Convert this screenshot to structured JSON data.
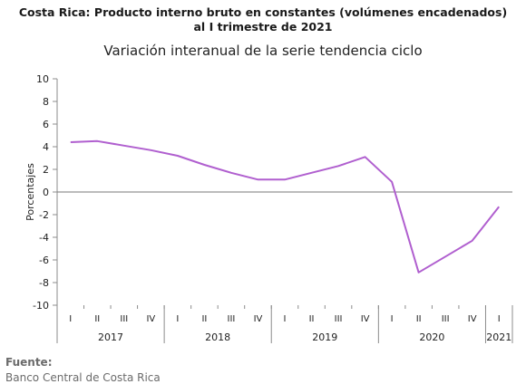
{
  "chart_data": {
    "type": "line",
    "title_line1": "Costa Rica: Producto interno bruto en constantes (volúmenes encadenados)",
    "title_line2": "al I trimestre de 2021",
    "subtitle": "Variación interanual de la serie tendencia ciclo",
    "ylabel": "Porcentajes",
    "ylim": [
      -10,
      10
    ],
    "yticks": [
      10,
      8,
      6,
      4,
      2,
      0,
      -2,
      -4,
      -6,
      -8,
      -10
    ],
    "quarters": [
      "I",
      "II",
      "III",
      "IV",
      "I",
      "II",
      "III",
      "IV",
      "I",
      "II",
      "III",
      "IV",
      "I",
      "II",
      "III",
      "IV",
      "I"
    ],
    "years": [
      {
        "label": "2017",
        "quarters": 4
      },
      {
        "label": "2018",
        "quarters": 4
      },
      {
        "label": "2019",
        "quarters": 4
      },
      {
        "label": "2020",
        "quarters": 4
      },
      {
        "label": "2021",
        "quarters": 1
      }
    ],
    "values": [
      4.4,
      4.5,
      4.1,
      3.7,
      3.2,
      2.4,
      1.7,
      1.1,
      1.1,
      1.7,
      2.3,
      3.1,
      0.9,
      -7.1,
      -5.7,
      -4.3,
      -1.3
    ],
    "line_color": "#b05fcf",
    "grid": false
  },
  "source": {
    "label": "Fuente:",
    "value": "Banco Central de Costa Rica"
  }
}
